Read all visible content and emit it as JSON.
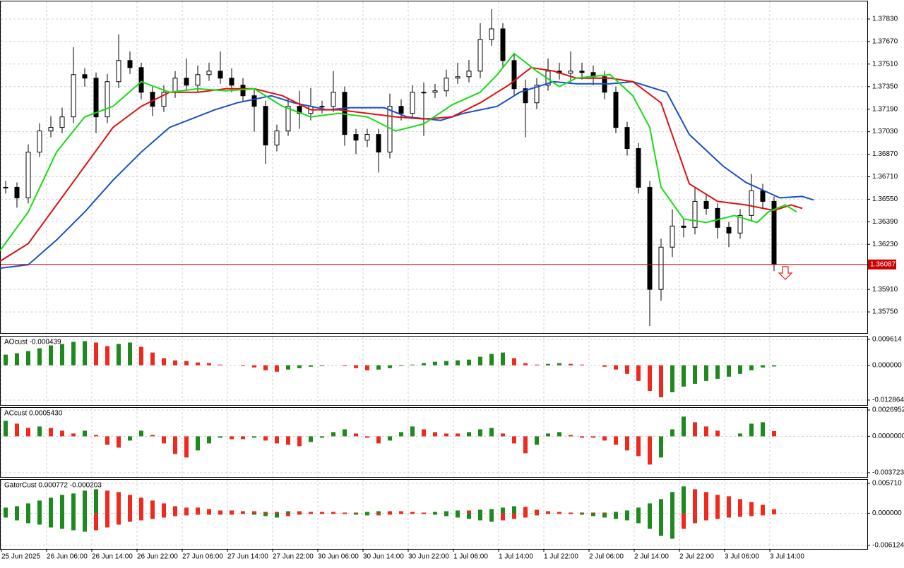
{
  "chart_data": [
    {
      "type": "candlestick",
      "ylim": [
        1.356,
        1.3796
      ],
      "grid": true,
      "yticks": [
        {
          "value": 1.3783,
          "label": "1.37830"
        },
        {
          "value": 1.3767,
          "label": "1.37670"
        },
        {
          "value": 1.3751,
          "label": "1.37510"
        },
        {
          "value": 1.3735,
          "label": "1.37350"
        },
        {
          "value": 1.3719,
          "label": "1.37190"
        },
        {
          "value": 1.3703,
          "label": "1.37030"
        },
        {
          "value": 1.3687,
          "label": "1.36870"
        },
        {
          "value": 1.3671,
          "label": "1.36710"
        },
        {
          "value": 1.3655,
          "label": "1.36550"
        },
        {
          "value": 1.3639,
          "label": "1.36390"
        },
        {
          "value": 1.3623,
          "label": "1.36230"
        },
        {
          "value": 1.3591,
          "label": "1.35910"
        },
        {
          "value": 1.3575,
          "label": "1.35750"
        }
      ],
      "up_color": "#ffffff",
      "down_color": "#000000",
      "open": [
        1.3663,
        1.36635,
        1.3656,
        1.36885,
        1.37035,
        1.3706,
        1.37135,
        1.37435,
        1.3741,
        1.37135,
        1.37385,
        1.37535,
        1.37485,
        1.3731,
        1.3721,
        1.3731,
        1.3741,
        1.3736,
        1.37435,
        1.3746,
        1.3741,
        1.3736,
        1.37285,
        1.3721,
        1.36935,
        1.37035,
        1.3721,
        1.3716,
        1.3721,
        1.3721,
        1.3731,
        1.3701,
        1.3697,
        1.3701,
        1.36885,
        1.3721,
        1.3716,
        1.3731,
        1.3731,
        1.3732,
        1.3741,
        1.3742,
        1.3746,
        1.37685,
        1.3776,
        1.37535,
        1.37335,
        1.37235,
        1.3736,
        1.3746,
        1.37445,
        1.3746,
        1.3745,
        1.3742,
        1.3731,
        1.3706,
        1.3691,
        1.36635,
        1.3591,
        1.3621,
        1.3636,
        1.3635,
        1.36535,
        1.36485,
        1.3635,
        1.3631,
        1.36435,
        1.3661,
        1.36535
      ],
      "high": [
        1.3668,
        1.3667,
        1.3694,
        1.3709,
        1.3714,
        1.372,
        1.3763,
        1.3748,
        1.3745,
        1.3744,
        1.3772,
        1.376,
        1.3752,
        1.3735,
        1.3736,
        1.3746,
        1.3755,
        1.375,
        1.3752,
        1.376,
        1.3748,
        1.3741,
        1.3733,
        1.3725,
        1.3708,
        1.3726,
        1.3732,
        1.3734,
        1.3725,
        1.3746,
        1.3735,
        1.3705,
        1.3705,
        1.3705,
        1.373,
        1.3726,
        1.3736,
        1.3738,
        1.3737,
        1.3747,
        1.3752,
        1.3754,
        1.378,
        1.379,
        1.378,
        1.3758,
        1.374,
        1.3741,
        1.3755,
        1.3752,
        1.376,
        1.3752,
        1.375,
        1.3746,
        1.3735,
        1.371,
        1.3695,
        1.3668,
        1.3627,
        1.3648,
        1.3641,
        1.3663,
        1.3658,
        1.3652,
        1.3639,
        1.3648,
        1.3673,
        1.3666,
        1.3657
      ],
      "low": [
        1.3659,
        1.3649,
        1.3652,
        1.3685,
        1.3699,
        1.3702,
        1.3709,
        1.3735,
        1.3702,
        1.3709,
        1.3734,
        1.3744,
        1.3726,
        1.3714,
        1.3717,
        1.3727,
        1.3732,
        1.3731,
        1.3739,
        1.3737,
        1.3731,
        1.3724,
        1.3703,
        1.368,
        1.3689,
        1.37,
        1.3705,
        1.3711,
        1.3716,
        1.3717,
        1.3693,
        1.3687,
        1.3692,
        1.3674,
        1.3684,
        1.3711,
        1.3712,
        1.37,
        1.3727,
        1.3728,
        1.3737,
        1.3738,
        1.3741,
        1.3764,
        1.3748,
        1.3729,
        1.3699,
        1.3719,
        1.3732,
        1.374,
        1.3738,
        1.374,
        1.3736,
        1.3726,
        1.3702,
        1.3686,
        1.3659,
        1.3565,
        1.3583,
        1.3614,
        1.3628,
        1.363,
        1.3644,
        1.3627,
        1.3621,
        1.3627,
        1.364,
        1.3649,
        1.3604
      ],
      "close": [
        1.36635,
        1.3656,
        1.36885,
        1.37035,
        1.3706,
        1.37135,
        1.37435,
        1.3741,
        1.37135,
        1.37385,
        1.37535,
        1.37485,
        1.3731,
        1.3721,
        1.3731,
        1.3741,
        1.3736,
        1.37435,
        1.3746,
        1.3741,
        1.3736,
        1.37285,
        1.3721,
        1.36935,
        1.37035,
        1.3721,
        1.3716,
        1.3721,
        1.3721,
        1.3731,
        1.3701,
        1.3697,
        1.3701,
        1.36885,
        1.3721,
        1.3716,
        1.3731,
        1.3731,
        1.3732,
        1.3741,
        1.3742,
        1.3746,
        1.37685,
        1.3776,
        1.37535,
        1.37335,
        1.37235,
        1.3736,
        1.3746,
        1.37445,
        1.3746,
        1.3745,
        1.3742,
        1.3731,
        1.3706,
        1.3691,
        1.36635,
        1.3591,
        1.3621,
        1.3636,
        1.3635,
        1.36535,
        1.36485,
        1.3635,
        1.3631,
        1.36435,
        1.3661,
        1.36535,
        1.36087
      ],
      "lines": [
        {
          "color": "#1a4fc4",
          "x": [
            -0.5,
            2,
            4.5,
            7,
            9.5,
            12,
            14.5,
            18.5,
            20.5,
            23.5,
            25.5,
            28.5,
            30.5,
            33.5,
            35.5,
            38.5,
            40.5,
            43.5,
            45.5,
            48.5,
            50.5,
            53.5,
            55.5,
            58.5,
            60.5,
            63.5,
            65.5,
            68.5,
            70.5,
            71.5
          ],
          "values": [
            1.3606,
            1.36085,
            1.3626,
            1.3646,
            1.36685,
            1.36885,
            1.3706,
            1.37185,
            1.37235,
            1.37285,
            1.37235,
            1.37185,
            1.372,
            1.372,
            1.37135,
            1.3711,
            1.3716,
            1.3721,
            1.3731,
            1.37385,
            1.3737,
            1.3737,
            1.37385,
            1.3731,
            1.3701,
            1.36785,
            1.3667,
            1.3656,
            1.3657,
            1.36545
          ]
        },
        {
          "color": "#e01010",
          "x": [
            -0.5,
            2,
            4.5,
            7,
            9.5,
            12,
            14.5,
            17,
            19.5,
            22,
            24.5,
            27,
            29.5,
            32,
            34.5,
            37,
            39.5,
            42,
            44.5,
            46.5,
            48.5,
            50.5,
            53.5,
            55.5,
            58,
            60.5,
            63,
            65.5,
            68,
            69.5,
            70.5
          ],
          "values": [
            1.3611,
            1.36235,
            1.3651,
            1.36785,
            1.3706,
            1.3721,
            1.3731,
            1.3731,
            1.37335,
            1.37335,
            1.37285,
            1.37185,
            1.37185,
            1.3716,
            1.37135,
            1.3712,
            1.37135,
            1.37235,
            1.3736,
            1.37485,
            1.3746,
            1.3741,
            1.3741,
            1.37385,
            1.37235,
            1.3666,
            1.36535,
            1.3651,
            1.3647,
            1.3651,
            1.36485
          ]
        },
        {
          "color": "#16dc16",
          "x": [
            -0.5,
            2,
            4.5,
            7,
            9.5,
            12,
            14.5,
            17,
            19.5,
            22,
            24.5,
            27,
            29.5,
            32,
            34.5,
            37,
            39.5,
            42,
            43.5,
            45,
            47,
            49,
            50.5,
            53.5,
            55.5,
            57,
            58,
            60,
            62,
            64.5,
            66.5,
            67.5,
            69,
            70
          ],
          "values": [
            1.36185,
            1.3646,
            1.36885,
            1.37135,
            1.3721,
            1.37385,
            1.3731,
            1.37335,
            1.3732,
            1.37335,
            1.3721,
            1.37135,
            1.3716,
            1.37135,
            1.37035,
            1.37085,
            1.3722,
            1.3731,
            1.37435,
            1.37585,
            1.3746,
            1.3735,
            1.3741,
            1.37435,
            1.37285,
            1.3706,
            1.36635,
            1.3641,
            1.36385,
            1.36435,
            1.36385,
            1.3646,
            1.3651,
            1.3646
          ]
        }
      ],
      "current_price": 1.36087,
      "current_price_color": "#cc0000"
    },
    {
      "type": "bar",
      "title": "AOcust -0.000439",
      "ylim": [
        -0.0147,
        0.0109
      ],
      "grid": true,
      "yticks": [
        0.009614,
        {
          "value": 0,
          "label": "0.000000"
        },
        -0.012864
      ],
      "up_color": "#1e8a1e",
      "down_color": "#ee2a1f",
      "values": [
        0.00395,
        0.00447,
        0.00526,
        0.00631,
        0.00736,
        0.00789,
        0.00868,
        0.00894,
        0.00842,
        0.0071,
        0.00789,
        0.00842,
        0.00684,
        0.00473,
        0.00263,
        0.00184,
        0.00158,
        0.00105,
        0.00079,
        0.00026,
        2e-05,
        -0.00026,
        -0.00079,
        -0.00184,
        -0.00237,
        -0.00158,
        -0.00105,
        -0.00053,
        -0.00026,
        3e-05,
        -0.00026,
        -0.00105,
        -0.00184,
        -0.00158,
        -0.00105,
        -0.00026,
        0.00026,
        0.00079,
        0.00132,
        0.00158,
        0.00184,
        0.0021,
        0.00316,
        0.00421,
        0.00473,
        0.00263,
        0.00079,
        0.00026,
        0.00053,
        0.00079,
        0.00053,
        0.00026,
        1e-05,
        -0.00053,
        -0.00158,
        -0.00316,
        -0.00579,
        -0.00947,
        -0.01184,
        -0.00999,
        -0.00789,
        -0.00684,
        -0.00579,
        -0.005,
        -0.00421,
        -0.00316,
        -0.00184,
        -0.00079,
        -0.000439
      ]
    },
    {
      "type": "bar",
      "title": "ACcust 0.0005430",
      "ylim": [
        -0.00416,
        0.00299
      ],
      "grid": true,
      "yticks": [
        0.0026952,
        {
          "value": 0,
          "label": "0.0000000"
        },
        -0.0037236
      ],
      "up_color": "#1e8a1e",
      "down_color": "#ee2a1f",
      "values": [
        0.001588,
        0.0013,
        0.000866,
        0.001011,
        0.000866,
        0.000578,
        0.000289,
        0.000578,
        0.000144,
        -0.000866,
        -0.001155,
        -0.000433,
        0.000578,
        0.000144,
        -0.000722,
        -0.001805,
        -0.002166,
        -0.001444,
        -0.000722,
        -0.000144,
        -0.000289,
        -0.000289,
        -0.000144,
        -0.000433,
        -0.000722,
        -0.000866,
        -0.001011,
        -0.000578,
        -0.000144,
        0.000433,
        0.000722,
        0.000289,
        -0.000144,
        -0.000722,
        -0.000433,
        0.000433,
        0.001011,
        0.000722,
        0.000433,
        0.000289,
        0.000289,
        0.000433,
        0.000722,
        0.000866,
        0.000289,
        -0.000722,
        -0.001733,
        -0.000866,
        0.000289,
        0.000433,
        0.000144,
        -0.000144,
        -0.000144,
        -0.000433,
        -0.000866,
        -0.001444,
        -0.002022,
        -0.002888,
        -0.002166,
        0.000722,
        0.002022,
        0.001444,
        0.001011,
        0.000578,
        0,
        0.000289,
        0.0013,
        0.001444,
        0.000543
      ]
    },
    {
      "type": "gator",
      "title": "GatorCust 0.000772 -0.000203",
      "ylim": [
        -0.0068,
        0.00652
      ],
      "grid": true,
      "yticks": [
        {
          "value": 0.00571,
          "label": "0.005710"
        },
        {
          "value": 0,
          "label": "0.000000"
        },
        -0.006124
      ],
      "up_color": "#1e8a1e",
      "down_color": "#ee2a1f",
      "upper": [
        0.00108,
        0.00135,
        0.00189,
        0.00243,
        0.00297,
        0.00351,
        0.00378,
        0.00432,
        0.00459,
        0.00432,
        0.00405,
        0.00351,
        0.00297,
        0.00243,
        0.00189,
        0.00135,
        0.00108,
        0.00108,
        0.00081,
        0.00054,
        0.00054,
        0.0004,
        0.0004,
        0.00027,
        0.00027,
        0.0004,
        0.0004,
        0.00027,
        0.00027,
        0.00027,
        0.00014,
        0.00014,
        0.00027,
        0.0004,
        0.0004,
        0.0004,
        0.00027,
        0.00014,
        0.00027,
        0.0004,
        0.00054,
        0.00054,
        0.00068,
        0.00081,
        0.00108,
        0.00135,
        0.00122,
        0.00068,
        0.0004,
        0.00027,
        0.00014,
        0.00014,
        0.00014,
        0.00014,
        0.00027,
        0.00054,
        0.00108,
        0.00189,
        0.0027,
        0.00405,
        0.00513,
        0.00459,
        0.00405,
        0.00351,
        0.00324,
        0.0027,
        0.00216,
        0.00162,
        0.000772
      ],
      "lower": [
        -0.00081,
        -0.00135,
        -0.00189,
        -0.00216,
        -0.0027,
        -0.00297,
        -0.00324,
        -0.00351,
        -0.00324,
        -0.0027,
        -0.00216,
        -0.00162,
        -0.00135,
        -0.00108,
        -0.00081,
        -0.00054,
        -0.0004,
        -0.00027,
        -0.00027,
        -0.00027,
        -0.00027,
        -0.00014,
        -0.00027,
        -0.00054,
        -0.00081,
        -0.00054,
        -0.00027,
        -0.00014,
        -0.00014,
        -0.00014,
        -0.00014,
        -0.00027,
        -0.0004,
        -0.0004,
        -0.00027,
        -0.00014,
        -0.00014,
        -0.00014,
        -0.00027,
        -0.00054,
        -0.00081,
        -0.00108,
        -0.00135,
        -0.00162,
        -0.00135,
        -0.00108,
        -0.00081,
        -0.0004,
        -0.00014,
        -0.00014,
        -0.00014,
        -0.00027,
        -0.00054,
        -0.00081,
        -0.00108,
        -0.00135,
        -0.00189,
        -0.00297,
        -0.00432,
        -0.00486,
        -0.00297,
        -0.00189,
        -0.00135,
        -0.00108,
        -0.00081,
        -0.00068,
        -0.00054,
        -0.0004,
        -0.000203
      ],
      "xticks": [
        {
          "value": 0,
          "label": "25 Jun 2025"
        },
        {
          "value": 4,
          "label": "26 Jun 06:00"
        },
        {
          "value": 8,
          "label": "26 Jun 14:00"
        },
        {
          "value": 12,
          "label": "26 Jun 22:00"
        },
        {
          "value": 16,
          "label": "27 Jun 06:00"
        },
        {
          "value": 20,
          "label": "27 Jun 14:00"
        },
        {
          "value": 24,
          "label": "27 Jun 22:00"
        },
        {
          "value": 28,
          "label": "30 Jun 06:00"
        },
        {
          "value": 32,
          "label": "30 Jun 14:00"
        },
        {
          "value": 36,
          "label": "30 Jun 22:00"
        },
        {
          "value": 40,
          "label": "1 Jul 06:00"
        },
        {
          "value": 44,
          "label": "1 Jul 14:00"
        },
        {
          "value": 48,
          "label": "1 Jul 22:00"
        },
        {
          "value": 52,
          "label": "2 Jul 06:00"
        },
        {
          "value": 56,
          "label": "2 Jul 14:00"
        },
        {
          "value": 60,
          "label": "2 Jul 22:00"
        },
        {
          "value": 64,
          "label": "3 Jul 06:00"
        },
        {
          "value": 68,
          "label": "3 Jul 14:00"
        }
      ]
    }
  ]
}
